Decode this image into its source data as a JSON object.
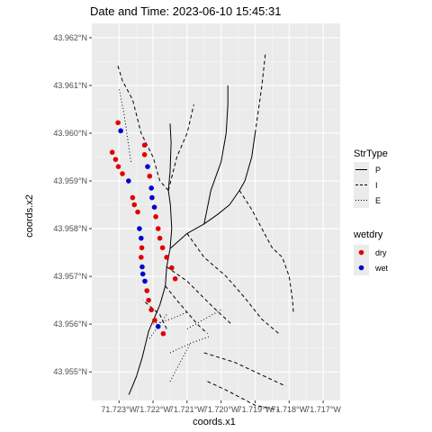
{
  "chart_data": {
    "type": "map",
    "title": "Date and Time: 2023-06-10 15:45:31",
    "xlabel": "coords.x1",
    "ylabel": "coords.x2",
    "xlim": [
      -71.7238,
      -71.7165
    ],
    "ylim": [
      43.9544,
      43.9623
    ],
    "x_ticks": [
      {
        "value": -71.723,
        "label": "71.723°W"
      },
      {
        "value": -71.722,
        "label": "71.722°W"
      },
      {
        "value": -71.721,
        "label": "71.721°W"
      },
      {
        "value": -71.72,
        "label": "71.720°W"
      },
      {
        "value": -71.719,
        "label": "71.719°W"
      },
      {
        "value": -71.718,
        "label": "71.718°W"
      },
      {
        "value": -71.717,
        "label": "71.717°W"
      }
    ],
    "y_ticks": [
      {
        "value": 43.955,
        "label": "43.955°N"
      },
      {
        "value": 43.956,
        "label": "43.956°N"
      },
      {
        "value": 43.957,
        "label": "43.957°N"
      },
      {
        "value": 43.958,
        "label": "43.958°N"
      },
      {
        "value": 43.959,
        "label": "43.959°N"
      },
      {
        "value": 43.96,
        "label": "43.960°N"
      },
      {
        "value": 43.961,
        "label": "43.961°N"
      },
      {
        "value": 43.962,
        "label": "43.962°N"
      }
    ],
    "grid": true,
    "background": "#ebebeb",
    "legends": [
      {
        "title": "StrType",
        "kind": "linetype",
        "entries": [
          {
            "label": "P",
            "dash": "solid"
          },
          {
            "label": "I",
            "dash": "dashed"
          },
          {
            "label": "E",
            "dash": "dotted"
          }
        ]
      },
      {
        "title": "wetdry",
        "kind": "color",
        "entries": [
          {
            "label": "dry",
            "color": "#e00000"
          },
          {
            "label": "wet",
            "color": "#0000d0"
          }
        ]
      }
    ],
    "streams": [
      {
        "type": "P",
        "points": [
          [
            -71.72271,
            43.95452
          ],
          [
            -71.72249,
            43.9549
          ],
          [
            -71.72232,
            43.9553
          ],
          [
            -71.72218,
            43.9557
          ],
          [
            -71.72213,
            43.95585
          ],
          [
            -71.72198,
            43.9561
          ],
          [
            -71.7218,
            43.9564
          ],
          [
            -71.72164,
            43.9568
          ],
          [
            -71.7216,
            43.9572
          ],
          [
            -71.7215,
            43.95758
          ],
          [
            -71.72145,
            43.958
          ],
          [
            -71.72149,
            43.9585
          ],
          [
            -71.72155,
            43.9588
          ],
          [
            -71.7215,
            43.9592
          ],
          [
            -71.72147,
            43.9598
          ],
          [
            -71.7215,
            43.9602
          ]
        ]
      },
      {
        "type": "P",
        "points": [
          [
            -71.7215,
            43.95758
          ],
          [
            -71.721,
            43.9579
          ],
          [
            -71.7205,
            43.9581
          ],
          [
            -71.7201,
            43.9583
          ],
          [
            -71.71975,
            43.9585
          ],
          [
            -71.71946,
            43.9588
          ],
          [
            -71.7193,
            43.959
          ],
          [
            -71.7191,
            43.9595
          ],
          [
            -71.719,
            43.96
          ]
        ]
      },
      {
        "type": "P",
        "points": [
          [
            -71.7205,
            43.9581
          ],
          [
            -71.7203,
            43.9588
          ],
          [
            -71.72,
            43.9594
          ],
          [
            -71.71985,
            43.96
          ],
          [
            -71.7198,
            43.9606
          ],
          [
            -71.7198,
            43.961
          ]
        ]
      },
      {
        "type": "I",
        "points": [
          [
            -71.72155,
            43.9588
          ],
          [
            -71.7213,
            43.9595
          ],
          [
            -71.721,
            43.96
          ],
          [
            -71.7208,
            43.9606
          ]
        ]
      },
      {
        "type": "I",
        "points": [
          [
            -71.72155,
            43.9588
          ],
          [
            -71.7218,
            43.959
          ],
          [
            -71.722,
            43.9595
          ],
          [
            -71.72235,
            43.96
          ],
          [
            -71.7226,
            43.9607
          ],
          [
            -71.7229,
            43.9611
          ],
          [
            -71.72305,
            43.96145
          ]
        ]
      },
      {
        "type": "I",
        "points": [
          [
            -71.719,
            43.96
          ],
          [
            -71.7189,
            43.9605
          ],
          [
            -71.7188,
            43.961
          ],
          [
            -71.7187,
            43.96165
          ]
        ]
      },
      {
        "type": "I",
        "points": [
          [
            -71.71946,
            43.9588
          ],
          [
            -71.7191,
            43.9584
          ],
          [
            -71.7188,
            43.958
          ],
          [
            -71.7185,
            43.9576
          ],
          [
            -71.7182,
            43.9574
          ],
          [
            -71.718,
            43.957
          ],
          [
            -71.7179,
            43.9565
          ],
          [
            -71.71787,
            43.9562
          ]
        ]
      },
      {
        "type": "I",
        "points": [
          [
            -71.721,
            43.9579
          ],
          [
            -71.7205,
            43.9574
          ],
          [
            -71.71985,
            43.957
          ],
          [
            -71.7193,
            43.95655
          ],
          [
            -71.7188,
            43.9561
          ],
          [
            -71.7183,
            43.9558
          ]
        ]
      },
      {
        "type": "I",
        "points": [
          [
            -71.7216,
            43.9572
          ],
          [
            -71.721,
            43.9569
          ],
          [
            -71.7203,
            43.9564
          ],
          [
            -71.7197,
            43.956
          ]
        ]
      },
      {
        "type": "I",
        "points": [
          [
            -71.72164,
            43.9568
          ],
          [
            -71.7213,
            43.9565
          ],
          [
            -71.7207,
            43.956
          ],
          [
            -71.7204,
            43.9558
          ]
        ]
      },
      {
        "type": "I",
        "points": [
          [
            -71.7205,
            43.9554
          ],
          [
            -71.7196,
            43.9552
          ],
          [
            -71.7187,
            43.9549
          ],
          [
            -71.7181,
            43.9547
          ]
        ]
      },
      {
        "type": "I",
        "points": [
          [
            -71.7204,
            43.9548
          ],
          [
            -71.7198,
            43.9546
          ],
          [
            -71.719,
            43.9543
          ],
          [
            -71.7183,
            43.9542
          ]
        ]
      },
      {
        "type": "I",
        "points": [
          [
            -71.7216,
            43.9559
          ],
          [
            -71.7218,
            43.9562
          ],
          [
            -71.72213,
            43.9564
          ],
          [
            -71.7223,
            43.9565
          ]
        ]
      },
      {
        "type": "E",
        "points": [
          [
            -71.72265,
            43.9594
          ],
          [
            -71.72275,
            43.9599
          ],
          [
            -71.72285,
            43.9604
          ],
          [
            -71.723,
            43.96095
          ]
        ]
      },
      {
        "type": "E",
        "points": [
          [
            -71.7215,
            43.9554
          ],
          [
            -71.7209,
            43.9556
          ],
          [
            -71.7203,
            43.95575
          ]
        ]
      },
      {
        "type": "E",
        "points": [
          [
            -71.722,
            43.956
          ],
          [
            -71.7215,
            43.9561
          ],
          [
            -71.721,
            43.95625
          ]
        ]
      },
      {
        "type": "E",
        "points": [
          [
            -71.7215,
            43.9548
          ],
          [
            -71.7212,
            43.9552
          ],
          [
            -71.7209,
            43.9556
          ]
        ]
      },
      {
        "type": "E",
        "points": [
          [
            -71.721,
            43.9559
          ],
          [
            -71.7205,
            43.9561
          ],
          [
            -71.72,
            43.9563
          ]
        ]
      },
      {
        "type": "E",
        "points": [
          [
            -71.7221,
            43.9557
          ],
          [
            -71.7218,
            43.956
          ],
          [
            -71.7216,
            43.9562
          ]
        ]
      }
    ],
    "points": [
      {
        "x": -71.72303,
        "y": 43.96022,
        "wetdry": "dry"
      },
      {
        "x": -71.72295,
        "y": 43.96005,
        "wetdry": "wet"
      },
      {
        "x": -71.72225,
        "y": 43.95975,
        "wetdry": "dry"
      },
      {
        "x": -71.72225,
        "y": 43.95955,
        "wetdry": "dry"
      },
      {
        "x": -71.72216,
        "y": 43.9593,
        "wetdry": "wet"
      },
      {
        "x": -71.7221,
        "y": 43.9591,
        "wetdry": "dry"
      },
      {
        "x": -71.72205,
        "y": 43.95885,
        "wetdry": "wet"
      },
      {
        "x": -71.72203,
        "y": 43.95865,
        "wetdry": "wet"
      },
      {
        "x": -71.72196,
        "y": 43.95845,
        "wetdry": "wet"
      },
      {
        "x": -71.72192,
        "y": 43.95825,
        "wetdry": "dry"
      },
      {
        "x": -71.72185,
        "y": 43.958,
        "wetdry": "dry"
      },
      {
        "x": -71.7218,
        "y": 43.9578,
        "wetdry": "dry"
      },
      {
        "x": -71.72172,
        "y": 43.9576,
        "wetdry": "dry"
      },
      {
        "x": -71.7216,
        "y": 43.9574,
        "wetdry": "dry"
      },
      {
        "x": -71.72145,
        "y": 43.95718,
        "wetdry": "dry"
      },
      {
        "x": -71.72135,
        "y": 43.95695,
        "wetdry": "dry"
      },
      {
        "x": -71.7232,
        "y": 43.9596,
        "wetdry": "dry"
      },
      {
        "x": -71.7231,
        "y": 43.95945,
        "wetdry": "dry"
      },
      {
        "x": -71.72302,
        "y": 43.9593,
        "wetdry": "dry"
      },
      {
        "x": -71.7229,
        "y": 43.95915,
        "wetdry": "dry"
      },
      {
        "x": -71.72272,
        "y": 43.959,
        "wetdry": "wet"
      },
      {
        "x": -71.7226,
        "y": 43.95865,
        "wetdry": "dry"
      },
      {
        "x": -71.72255,
        "y": 43.9585,
        "wetdry": "dry"
      },
      {
        "x": -71.72245,
        "y": 43.95835,
        "wetdry": "dry"
      },
      {
        "x": -71.7224,
        "y": 43.958,
        "wetdry": "wet"
      },
      {
        "x": -71.72235,
        "y": 43.9578,
        "wetdry": "wet"
      },
      {
        "x": -71.72233,
        "y": 43.9576,
        "wetdry": "dry"
      },
      {
        "x": -71.72235,
        "y": 43.9574,
        "wetdry": "dry"
      },
      {
        "x": -71.72232,
        "y": 43.9572,
        "wetdry": "wet"
      },
      {
        "x": -71.7223,
        "y": 43.95705,
        "wetdry": "wet"
      },
      {
        "x": -71.72224,
        "y": 43.9569,
        "wetdry": "wet"
      },
      {
        "x": -71.72218,
        "y": 43.9567,
        "wetdry": "dry"
      },
      {
        "x": -71.72213,
        "y": 43.9565,
        "wetdry": "dry"
      },
      {
        "x": -71.72205,
        "y": 43.9563,
        "wetdry": "dry"
      },
      {
        "x": -71.72195,
        "y": 43.95608,
        "wetdry": "dry"
      },
      {
        "x": -71.72185,
        "y": 43.95595,
        "wetdry": "wet"
      },
      {
        "x": -71.7217,
        "y": 43.9558,
        "wetdry": "dry"
      }
    ]
  }
}
